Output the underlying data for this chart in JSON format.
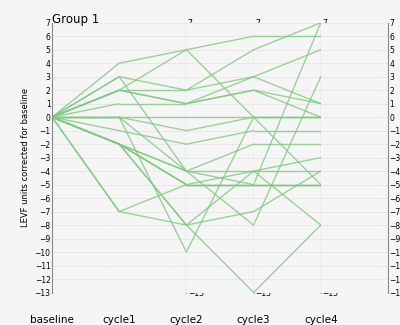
{
  "title": "Group 1",
  "ylabel": "LEVF units corrected for baseline",
  "x_labels": [
    "baseline",
    "cycle1",
    "cycle2",
    "cycle3",
    "cycle4"
  ],
  "ylim": [
    -13,
    7
  ],
  "yticks": [
    -13,
    -12,
    -11,
    -10,
    -9,
    -8,
    -7,
    -6,
    -5,
    -4,
    -3,
    -2,
    -1,
    0,
    1,
    2,
    3,
    4,
    5,
    6,
    7
  ],
  "line_color": "#82C882",
  "line_alpha": 0.8,
  "line_width": 1.0,
  "background_color": "#f5f5f5",
  "axis_color": "#888888",
  "grid_color": "#bbbbbb",
  "tick_fontsize": 5.5,
  "xlabel_fontsize": 7.5,
  "ylabel_fontsize": 6.0,
  "title_fontsize": 8.5,
  "patients": [
    [
      0,
      4,
      5,
      6,
      6
    ],
    [
      0,
      3,
      2,
      3,
      5
    ],
    [
      0,
      2,
      2,
      5,
      7
    ],
    [
      0,
      2,
      1,
      2,
      1
    ],
    [
      0,
      2,
      1,
      3,
      1
    ],
    [
      0,
      1,
      1,
      2,
      0
    ],
    [
      0,
      0,
      0,
      0,
      0
    ],
    [
      0,
      0,
      -1,
      0,
      0
    ],
    [
      0,
      -1,
      -2,
      -1,
      -1
    ],
    [
      0,
      -2,
      -4,
      -2,
      -2
    ],
    [
      0,
      -2,
      -4,
      -4,
      -3
    ],
    [
      0,
      -2,
      -5,
      -4,
      -4
    ],
    [
      0,
      -2,
      -5,
      -5,
      -5
    ],
    [
      0,
      -2,
      -5,
      -5,
      -5
    ],
    [
      0,
      -2,
      -8,
      -4,
      -8
    ],
    [
      0,
      -2,
      -8,
      -7,
      -4
    ],
    [
      0,
      -7,
      -5,
      -5,
      -5
    ],
    [
      0,
      -7,
      -8,
      -13,
      -8
    ],
    [
      0,
      0,
      -4,
      -8,
      3
    ],
    [
      0,
      3,
      -4,
      -5,
      7
    ],
    [
      0,
      0,
      -10,
      0,
      0
    ],
    [
      0,
      2,
      5,
      0,
      -5
    ]
  ]
}
